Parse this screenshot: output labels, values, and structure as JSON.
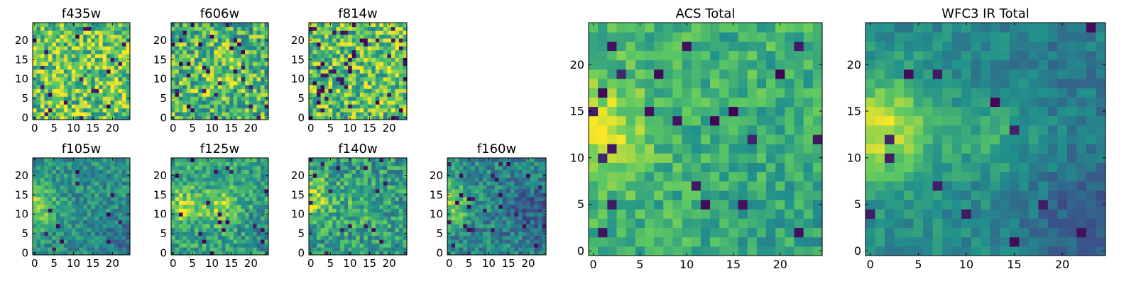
{
  "figure": {
    "colormap": "viridis",
    "colormap_stops": [
      "#440154",
      "#3b528b",
      "#21918c",
      "#5ec962",
      "#fde725"
    ],
    "frame_color": "#000000"
  },
  "chart_data": [
    {
      "type": "heatmap",
      "title": "f435w",
      "xlim": [
        -0.5,
        24.5
      ],
      "ylim": [
        -0.5,
        24.5
      ],
      "xticks": [
        0,
        5,
        10,
        15,
        20
      ],
      "yticks": [
        0,
        5,
        10,
        15,
        20
      ],
      "grid": false,
      "texture": "pixel noise",
      "mean": 0.75,
      "noise": 0.3,
      "dark_fraction": 0.04
    },
    {
      "type": "heatmap",
      "title": "f606w",
      "xlim": [
        -0.5,
        24.5
      ],
      "ylim": [
        -0.5,
        24.5
      ],
      "xticks": [
        0,
        5,
        10,
        15,
        20
      ],
      "yticks": [
        0,
        5,
        10,
        15,
        20
      ],
      "grid": false,
      "texture": "pixel noise, brighter centre",
      "mean": 0.66,
      "noise": 0.3,
      "dark_fraction": 0.05
    },
    {
      "type": "heatmap",
      "title": "f814w",
      "xlim": [
        -0.5,
        24.5
      ],
      "ylim": [
        -0.5,
        24.5
      ],
      "xticks": [
        0,
        5,
        10,
        15,
        20
      ],
      "yticks": [
        0,
        5,
        10,
        15,
        20
      ],
      "grid": false,
      "texture": "pixel noise",
      "mean": 0.72,
      "noise": 0.3,
      "dark_fraction": 0.05
    },
    {
      "type": "heatmap",
      "title": "f105w",
      "xlim": [
        -0.5,
        24.5
      ],
      "ylim": [
        -0.5,
        24.5
      ],
      "xticks": [
        0,
        5,
        10,
        15,
        20
      ],
      "yticks": [
        0,
        5,
        10,
        15,
        20
      ],
      "grid": false,
      "texture": "bright left edge, dark lower right",
      "mean": 0.5,
      "noise": 0.16,
      "dark_fraction": 0.02
    },
    {
      "type": "heatmap",
      "title": "f125w",
      "xlim": [
        -0.5,
        24.5
      ],
      "ylim": [
        -0.5,
        24.5
      ],
      "xticks": [
        0,
        5,
        10,
        15,
        20
      ],
      "yticks": [
        0,
        5,
        10,
        15,
        20
      ],
      "grid": false,
      "texture": "bright blobs left and centre",
      "mean": 0.58,
      "noise": 0.2,
      "dark_fraction": 0.03
    },
    {
      "type": "heatmap",
      "title": "f140w",
      "xlim": [
        -0.5,
        24.5
      ],
      "ylim": [
        -0.5,
        24.5
      ],
      "xticks": [
        0,
        5,
        10,
        15,
        20
      ],
      "yticks": [
        0,
        5,
        10,
        15,
        20
      ],
      "grid": false,
      "texture": "bright left edge, mottled",
      "mean": 0.55,
      "noise": 0.22,
      "dark_fraction": 0.04
    },
    {
      "type": "heatmap",
      "title": "f160w",
      "xlim": [
        -0.5,
        24.5
      ],
      "ylim": [
        -0.5,
        24.5
      ],
      "xticks": [
        0,
        5,
        10,
        15,
        20
      ],
      "yticks": [
        0,
        5,
        10,
        15,
        20
      ],
      "grid": false,
      "texture": "bright left edge, dark right",
      "mean": 0.46,
      "noise": 0.18,
      "dark_fraction": 0.04
    },
    {
      "type": "heatmap",
      "title": "ACS Total",
      "xlim": [
        -0.5,
        24.5
      ],
      "ylim": [
        -0.5,
        24.5
      ],
      "xticks": [
        0,
        5,
        10,
        15,
        20
      ],
      "yticks": [
        0,
        5,
        10,
        15,
        20
      ],
      "grid": false,
      "texture": "bright left edge, green field, scattered dark pixels",
      "mean": 0.64,
      "noise": 0.15,
      "dark_fraction": 0.035
    },
    {
      "type": "heatmap",
      "title": "WFC3 IR Total",
      "xlim": [
        -0.5,
        24.5
      ],
      "ylim": [
        -0.5,
        24.5
      ],
      "xticks": [
        0,
        5,
        10,
        15,
        20
      ],
      "yticks": [
        0,
        5,
        10,
        15,
        20
      ],
      "grid": false,
      "texture": "bright left blob, dark lower right",
      "mean": 0.48,
      "noise": 0.1,
      "dark_fraction": 0.02
    }
  ]
}
